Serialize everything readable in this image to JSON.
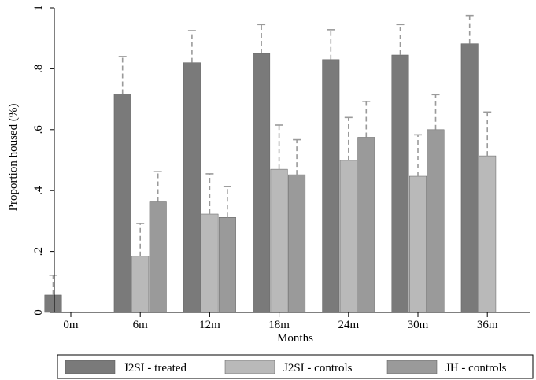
{
  "chart_data": {
    "type": "bar",
    "xlabel": "Months",
    "ylabel": "Proportion housed (%)",
    "ylim": [
      0,
      1
    ],
    "yticks": [
      0,
      0.2,
      0.4,
      0.6,
      0.8,
      1
    ],
    "ytick_labels": [
      "0",
      ".2",
      ".4",
      ".6",
      ".8",
      "1"
    ],
    "grid": false,
    "legend_position": "bottom",
    "categories": [
      "0m",
      "6m",
      "12m",
      "18m",
      "24m",
      "30m",
      "36m"
    ],
    "series": [
      {
        "name": "J2SI - treated",
        "color": "#7a7a7a",
        "values": [
          0.057,
          0.717,
          0.82,
          0.85,
          0.83,
          0.845,
          0.882
        ],
        "ci_upper": [
          0.122,
          0.84,
          0.925,
          0.945,
          0.928,
          0.945,
          0.975
        ]
      },
      {
        "name": "J2SI - controls",
        "color": "#b9b9b9",
        "values": [
          0.002,
          0.184,
          0.323,
          0.47,
          0.499,
          0.447,
          0.514
        ],
        "ci_upper": [
          null,
          0.292,
          0.455,
          0.615,
          0.64,
          0.583,
          0.658
        ]
      },
      {
        "name": "JH - controls",
        "color": "#9a9a9a",
        "values": [
          null,
          0.363,
          0.312,
          0.452,
          0.575,
          0.6,
          null
        ],
        "ci_upper": [
          null,
          0.462,
          0.413,
          0.567,
          0.693,
          0.715,
          null
        ]
      }
    ]
  }
}
